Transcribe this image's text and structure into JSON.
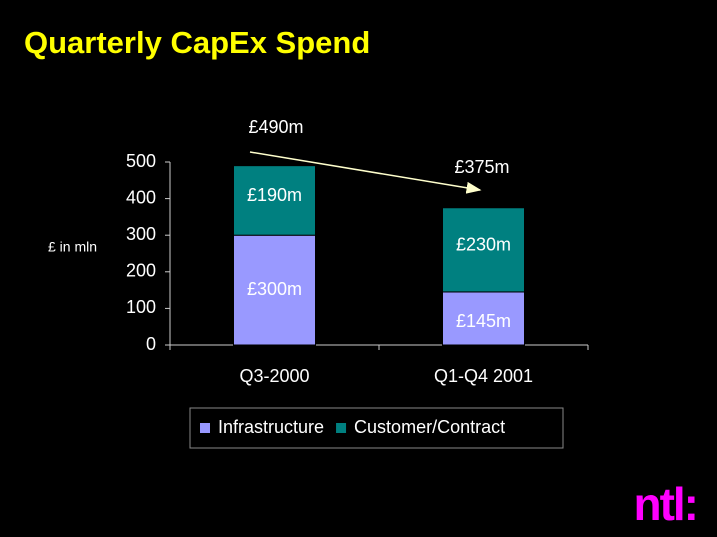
{
  "chart_data": {
    "type": "stacked_bar",
    "title": "Quarterly CapEx Spend",
    "y_label": "£ in mln",
    "categories": [
      "Q3-2000",
      "Q1-Q4 2001"
    ],
    "series": [
      {
        "name": "Infrastructure",
        "color": "#9999ff",
        "values": [
          300,
          145
        ],
        "value_labels": [
          "£300m",
          "£145m"
        ]
      },
      {
        "name": "Customer/Contract",
        "color": "#008080",
        "values": [
          190,
          230
        ],
        "value_labels": [
          "£190m",
          "£230m"
        ]
      }
    ],
    "annotations": [
      "£490m",
      "£375m"
    ],
    "ylim": [
      0,
      500
    ],
    "yticks": [
      0,
      100,
      200,
      300,
      400,
      500
    ],
    "legend": "bottom",
    "logo": "ntl:"
  }
}
